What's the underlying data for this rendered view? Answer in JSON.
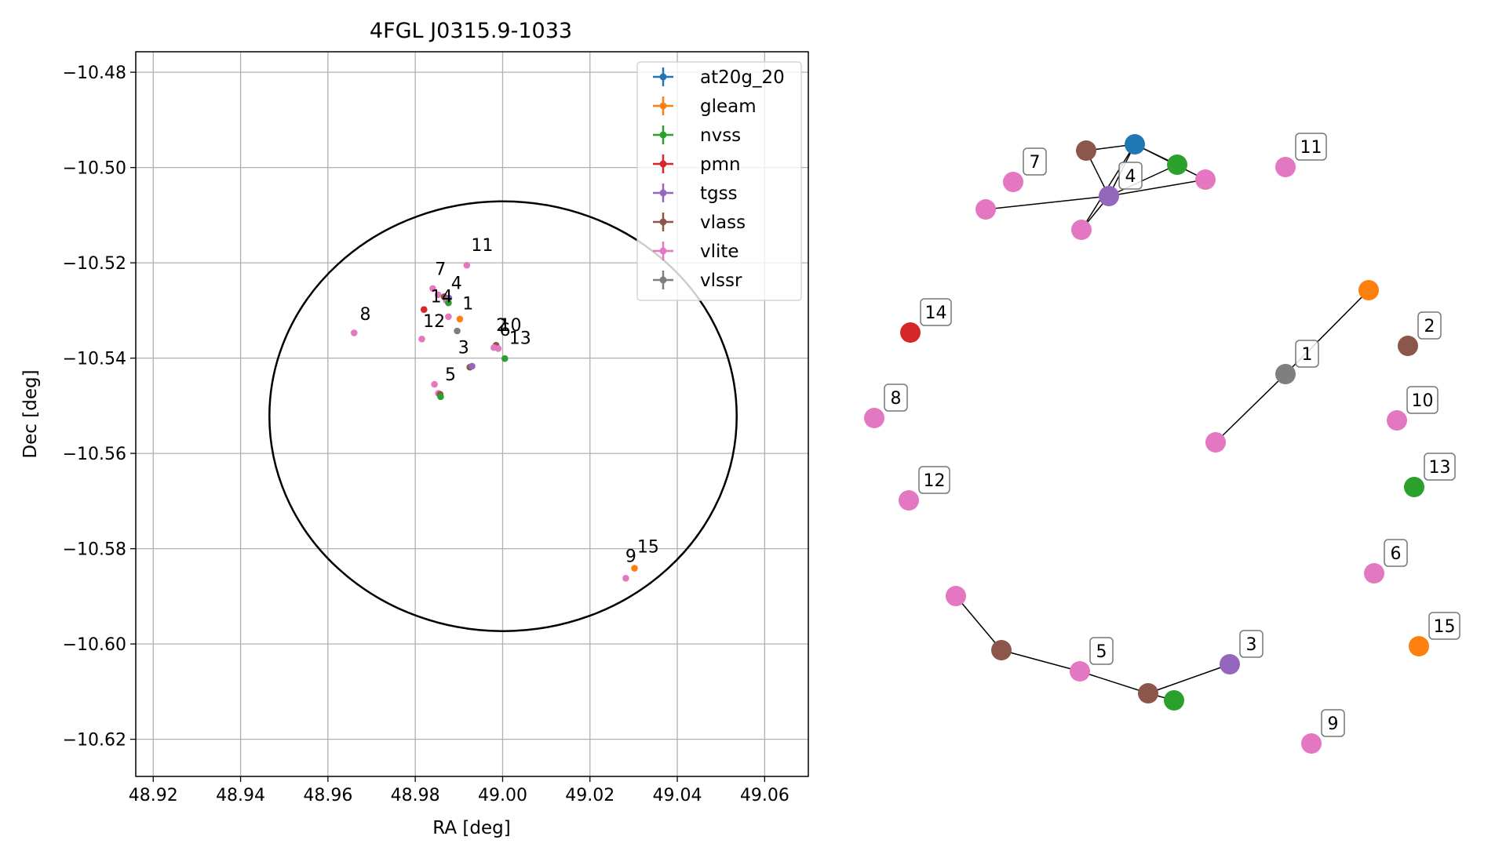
{
  "chart_data": [
    {
      "type": "scatter",
      "title": "4FGL J0315.9-1033",
      "xlabel": "RA [deg]",
      "ylabel": "Dec [deg]",
      "xlim": [
        48.916,
        49.07
      ],
      "ylim": [
        -10.6278,
        -10.4757
      ],
      "xticks": [
        48.92,
        48.94,
        48.96,
        48.98,
        49.0,
        49.02,
        49.04,
        49.06
      ],
      "xtick_labels": [
        "48.92",
        "48.94",
        "48.96",
        "48.98",
        "49.00",
        "49.02",
        "49.04",
        "49.06"
      ],
      "yticks": [
        -10.48,
        -10.5,
        -10.52,
        -10.54,
        -10.56,
        -10.58,
        -10.6,
        -10.62
      ],
      "ytick_labels": [
        "−10.48",
        "−10.50",
        "−10.52",
        "−10.54",
        "−10.56",
        "−10.58",
        "−10.60",
        "−10.62"
      ],
      "grid": true,
      "legend_position": "top-right",
      "legend": [
        {
          "name": "at20g_20",
          "color": "#1f77b4"
        },
        {
          "name": "gleam",
          "color": "#ff7f0e"
        },
        {
          "name": "nvss",
          "color": "#2ca02c"
        },
        {
          "name": "pmn",
          "color": "#d62728"
        },
        {
          "name": "tgss",
          "color": "#9467bd"
        },
        {
          "name": "vlass",
          "color": "#8c564b"
        },
        {
          "name": "vlite",
          "color": "#e377c2"
        },
        {
          "name": "vlssr",
          "color": "#7f7f7f"
        }
      ],
      "ellipse": {
        "center": [
          49.0001,
          -10.5522
        ],
        "ra_halfwidth": 0.0535,
        "dec_halfheight": 0.0451,
        "color": "#000000"
      },
      "points": [
        {
          "catalog": "vlite",
          "ra": 48.9918,
          "dec": -10.5205,
          "color": "#e377c2"
        },
        {
          "catalog": "vlite",
          "ra": 48.984,
          "dec": -10.5254,
          "color": "#e377c2"
        },
        {
          "catalog": "vlite",
          "ra": 48.9852,
          "dec": -10.5267,
          "color": "#e377c2"
        },
        {
          "catalog": "vlite",
          "ra": 48.9871,
          "dec": -10.5279,
          "color": "#e377c2"
        },
        {
          "catalog": "vlass",
          "ra": 48.9866,
          "dec": -10.5271,
          "color": "#8c564b"
        },
        {
          "catalog": "tgss",
          "ra": 48.9877,
          "dec": -10.5274,
          "color": "#9467bd"
        },
        {
          "catalog": "nvss",
          "ra": 48.9876,
          "dec": -10.5284,
          "color": "#2ca02c"
        },
        {
          "catalog": "pmn",
          "ra": 48.982,
          "dec": -10.5298,
          "color": "#d62728"
        },
        {
          "catalog": "vlite",
          "ra": 48.9876,
          "dec": -10.5313,
          "color": "#e377c2"
        },
        {
          "catalog": "gleam",
          "ra": 48.9902,
          "dec": -10.5318,
          "color": "#ff7f0e"
        },
        {
          "catalog": "vlssr",
          "ra": 48.9896,
          "dec": -10.5343,
          "color": "#7f7f7f"
        },
        {
          "catalog": "vlite",
          "ra": 48.966,
          "dec": -10.5347,
          "color": "#e377c2"
        },
        {
          "catalog": "vlite",
          "ra": 48.9815,
          "dec": -10.536,
          "color": "#e377c2"
        },
        {
          "catalog": "vlass",
          "ra": 48.9985,
          "dec": -10.5373,
          "color": "#8c564b"
        },
        {
          "catalog": "vlite",
          "ra": 48.998,
          "dec": -10.5378,
          "color": "#e377c2"
        },
        {
          "catalog": "vlite",
          "ra": 48.999,
          "dec": -10.538,
          "color": "#e377c2"
        },
        {
          "catalog": "nvss",
          "ra": 49.0005,
          "dec": -10.5401,
          "color": "#2ca02c"
        },
        {
          "catalog": "vlass",
          "ra": 48.9925,
          "dec": -10.5419,
          "color": "#8c564b"
        },
        {
          "catalog": "tgss",
          "ra": 48.993,
          "dec": -10.5417,
          "color": "#9467bd"
        },
        {
          "catalog": "vlite",
          "ra": 48.9844,
          "dec": -10.5455,
          "color": "#e377c2"
        },
        {
          "catalog": "vlite",
          "ra": 48.9853,
          "dec": -10.5474,
          "color": "#e377c2"
        },
        {
          "catalog": "vlass",
          "ra": 48.9857,
          "dec": -10.5476,
          "color": "#8c564b"
        },
        {
          "catalog": "nvss",
          "ra": 48.9858,
          "dec": -10.5481,
          "color": "#2ca02c"
        },
        {
          "catalog": "gleam",
          "ra": 49.0302,
          "dec": -10.5841,
          "color": "#ff7f0e"
        },
        {
          "catalog": "vlite",
          "ra": 49.0282,
          "dec": -10.5862,
          "color": "#e377c2"
        }
      ],
      "labels": [
        {
          "text": "11",
          "ra": 48.9928,
          "dec": -10.5175
        },
        {
          "text": "7",
          "ra": 48.9845,
          "dec": -10.5225
        },
        {
          "text": "4",
          "ra": 48.9882,
          "dec": -10.5255
        },
        {
          "text": "14",
          "ra": 48.9835,
          "dec": -10.5283
        },
        {
          "text": "8",
          "ra": 48.9673,
          "dec": -10.532
        },
        {
          "text": "1",
          "ra": 48.9908,
          "dec": -10.5298
        },
        {
          "text": "12",
          "ra": 48.9818,
          "dec": -10.5335
        },
        {
          "text": "2",
          "ra": 48.9985,
          "dec": -10.5343
        },
        {
          "text": "10",
          "ra": 48.9993,
          "dec": -10.5343
        },
        {
          "text": "6",
          "ra": 48.9993,
          "dec": -10.5353
        },
        {
          "text": "13",
          "ra": 49.0015,
          "dec": -10.537
        },
        {
          "text": "3",
          "ra": 48.9898,
          "dec": -10.539
        },
        {
          "text": "5",
          "ra": 48.9868,
          "dec": -10.5447
        },
        {
          "text": "9",
          "ra": 49.0281,
          "dec": -10.5828
        },
        {
          "text": "15",
          "ra": 49.0308,
          "dec": -10.5808
        }
      ]
    },
    {
      "type": "network",
      "nodes": [
        {
          "id": "n_at20g",
          "catalog": "at20g_20",
          "color": "#1f77b4",
          "label": ""
        },
        {
          "id": "n_vlass_t",
          "catalog": "vlass",
          "color": "#8c564b",
          "label": ""
        },
        {
          "id": "n_nvss_t",
          "catalog": "nvss",
          "color": "#2ca02c",
          "label": ""
        },
        {
          "id": "n_vlite_tr",
          "catalog": "vlite",
          "color": "#e377c2",
          "label": ""
        },
        {
          "id": "n_tgss_4",
          "catalog": "tgss",
          "color": "#9467bd",
          "label": "4"
        },
        {
          "id": "n_vlite_7",
          "catalog": "vlite",
          "color": "#e377c2",
          "label": "7"
        },
        {
          "id": "n_vlite_l",
          "catalog": "vlite",
          "color": "#e377c2",
          "label": ""
        },
        {
          "id": "n_vlite_b",
          "catalog": "vlite",
          "color": "#e377c2",
          "label": ""
        },
        {
          "id": "n_vlite_11",
          "catalog": "vlite",
          "color": "#e377c2",
          "label": "11"
        },
        {
          "id": "n_pmn_14",
          "catalog": "pmn",
          "color": "#d62728",
          "label": "14"
        },
        {
          "id": "n_gleam_1",
          "catalog": "gleam",
          "color": "#ff7f0e",
          "label": ""
        },
        {
          "id": "n_vlssr_1",
          "catalog": "vlssr",
          "color": "#7f7f7f",
          "label": "1"
        },
        {
          "id": "n_vlite_1",
          "catalog": "vlite",
          "color": "#e377c2",
          "label": ""
        },
        {
          "id": "n_vlass_2",
          "catalog": "vlass",
          "color": "#8c564b",
          "label": "2"
        },
        {
          "id": "n_vlite_8",
          "catalog": "vlite",
          "color": "#e377c2",
          "label": "8"
        },
        {
          "id": "n_vlite_10",
          "catalog": "vlite",
          "color": "#e377c2",
          "label": "10"
        },
        {
          "id": "n_vlite_12",
          "catalog": "vlite",
          "color": "#e377c2",
          "label": "12"
        },
        {
          "id": "n_nvss_13",
          "catalog": "nvss",
          "color": "#2ca02c",
          "label": "13"
        },
        {
          "id": "n_vlite_6",
          "catalog": "vlite",
          "color": "#e377c2",
          "label": "6"
        },
        {
          "id": "n_vlite_5a",
          "catalog": "vlite",
          "color": "#e377c2",
          "label": ""
        },
        {
          "id": "n_vlass_5",
          "catalog": "vlass",
          "color": "#8c564b",
          "label": ""
        },
        {
          "id": "n_vlite_5",
          "catalog": "vlite",
          "color": "#e377c2",
          "label": "5"
        },
        {
          "id": "n_vlass_3",
          "catalog": "vlass",
          "color": "#8c564b",
          "label": ""
        },
        {
          "id": "n_nvss_3",
          "catalog": "nvss",
          "color": "#2ca02c",
          "label": ""
        },
        {
          "id": "n_tgss_3",
          "catalog": "tgss",
          "color": "#9467bd",
          "label": "3"
        },
        {
          "id": "n_gleam_15",
          "catalog": "gleam",
          "color": "#ff7f0e",
          "label": "15"
        },
        {
          "id": "n_vlite_9",
          "catalog": "vlite",
          "color": "#e377c2",
          "label": "9"
        }
      ],
      "edges": [
        [
          "n_vlass_t",
          "n_at20g"
        ],
        [
          "n_at20g",
          "n_nvss_t"
        ],
        [
          "n_vlass_t",
          "n_tgss_4"
        ],
        [
          "n_at20g",
          "n_tgss_4"
        ],
        [
          "n_nvss_t",
          "n_tgss_4"
        ],
        [
          "n_at20g",
          "n_vlite_tr"
        ],
        [
          "n_tgss_4",
          "n_vlite_tr"
        ],
        [
          "n_tgss_4",
          "n_vlite_l"
        ],
        [
          "n_tgss_4",
          "n_vlite_b"
        ],
        [
          "n_at20g",
          "n_vlite_b"
        ],
        [
          "n_gleam_1",
          "n_vlssr_1"
        ],
        [
          "n_vlssr_1",
          "n_vlite_1"
        ],
        [
          "n_vlite_5a",
          "n_vlass_5"
        ],
        [
          "n_vlass_5",
          "n_vlite_5"
        ],
        [
          "n_vlite_5",
          "n_vlass_3"
        ],
        [
          "n_vlass_3",
          "n_tgss_3"
        ],
        [
          "n_vlass_3",
          "n_nvss_3"
        ]
      ]
    }
  ]
}
